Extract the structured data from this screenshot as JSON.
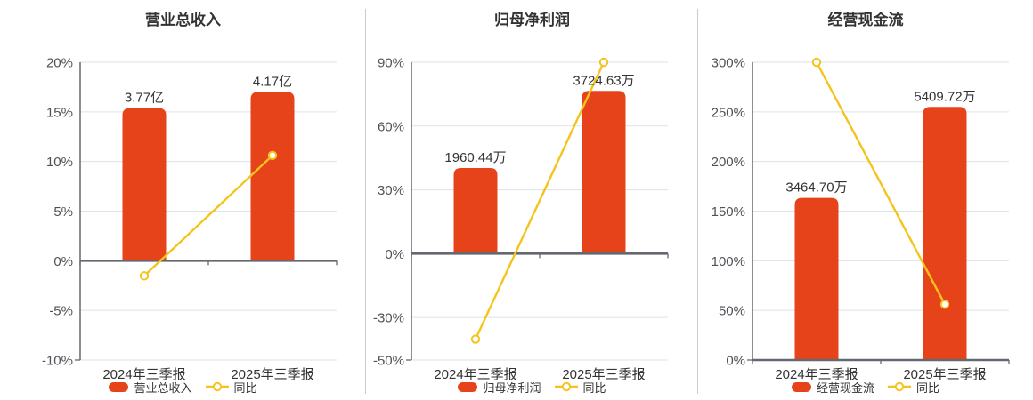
{
  "page": {
    "background": "#ffffff"
  },
  "colors": {
    "bar": "#E7431A",
    "line": "#F4C41D",
    "marker_fill": "#FFFFFF",
    "grid": "#DCE3E9",
    "axis_dark": "#65686F",
    "divider": "#CCCCCC",
    "title_text": "#333333",
    "axis_label_text": "#4E5256",
    "bar_label_text": "#333333",
    "category_label_text": "#333333"
  },
  "chart_data": [
    {
      "type": "bar",
      "title": "营业总收入",
      "categories": [
        "2024年三季报",
        "2025年三季报"
      ],
      "series": [
        {
          "name": "营业总收入",
          "type": "bar",
          "unit": "亿",
          "values": [
            3.77,
            4.17
          ],
          "labels": [
            "3.77亿",
            "4.17亿"
          ]
        },
        {
          "name": "同比",
          "type": "line",
          "unit": "%",
          "values": [
            -1.52,
            10.61
          ]
        }
      ],
      "y_axis": {
        "min": -10,
        "max": 20,
        "tick_values": [
          20,
          15,
          10,
          5,
          0,
          -5,
          -10
        ],
        "tick_labels": [
          "20%",
          "15%",
          "10%",
          "5%",
          "0%",
          "-5%",
          "-10%"
        ]
      },
      "legend": [
        "营业总收入",
        "同比"
      ],
      "legend_position": "bottom",
      "grid": true
    },
    {
      "type": "bar",
      "title": "归母净利润",
      "categories": [
        "2024年三季报",
        "2025年三季报"
      ],
      "series": [
        {
          "name": "归母净利润",
          "type": "bar",
          "unit": "万",
          "values": [
            1960.44,
            3724.63
          ],
          "labels": [
            "1960.44万",
            "3724.63万"
          ]
        },
        {
          "name": "同比",
          "type": "line",
          "unit": "%",
          "values": [
            -40.19,
            90.0
          ]
        }
      ],
      "y_axis": {
        "min": -50,
        "max": 90,
        "tick_values": [
          90,
          60,
          30,
          0,
          -30,
          -50
        ],
        "tick_labels": [
          "90%",
          "60%",
          "30%",
          "0%",
          "-30%",
          "-50%"
        ]
      },
      "legend": [
        "归母净利润",
        "同比"
      ],
      "legend_position": "bottom",
      "grid": true
    },
    {
      "type": "bar",
      "title": "经营现金流",
      "categories": [
        "2024年三季报",
        "2025年三季报"
      ],
      "series": [
        {
          "name": "经营现金流",
          "type": "bar",
          "unit": "万",
          "values": [
            3464.7,
            5409.72
          ],
          "labels": [
            "3464.70万",
            "5409.72万"
          ]
        },
        {
          "name": "同比",
          "type": "line",
          "unit": "%",
          "values": [
            300.0,
            56.14
          ]
        }
      ],
      "y_axis": {
        "min": 0,
        "max": 300,
        "tick_values": [
          300,
          250,
          200,
          150,
          100,
          50,
          0
        ],
        "tick_labels": [
          "300%",
          "250%",
          "200%",
          "150%",
          "100%",
          "50%",
          "0%"
        ]
      },
      "legend": [
        "经营现金流",
        "同比"
      ],
      "legend_position": "bottom",
      "grid": true
    }
  ]
}
